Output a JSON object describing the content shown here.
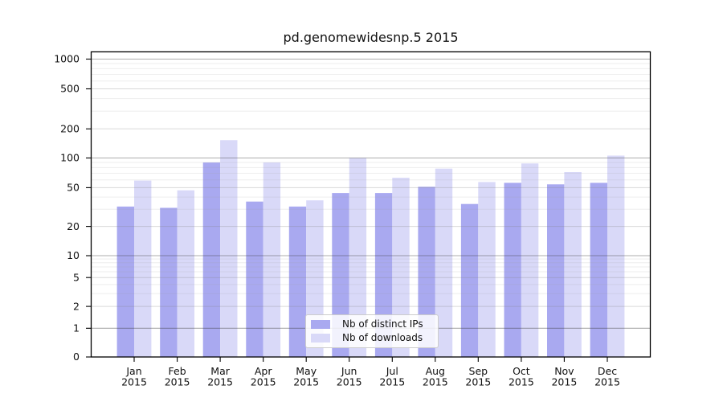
{
  "title": "pd.genomewidesnp.5 2015",
  "legend": {
    "items": [
      {
        "label": "Nb of distinct IPs",
        "color": "#a9a9f0"
      },
      {
        "label": "Nb of downloads",
        "color": "#d9d9f8"
      }
    ]
  },
  "chart_data": {
    "type": "bar",
    "title": "pd.genomewidesnp.5 2015",
    "x_tick_labels": [
      [
        "Jan",
        "2015"
      ],
      [
        "Feb",
        "2015"
      ],
      [
        "Mar",
        "2015"
      ],
      [
        "Apr",
        "2015"
      ],
      [
        "May",
        "2015"
      ],
      [
        "Jun",
        "2015"
      ],
      [
        "Jul",
        "2015"
      ],
      [
        "Aug",
        "2015"
      ],
      [
        "Sep",
        "2015"
      ],
      [
        "Oct",
        "2015"
      ],
      [
        "Nov",
        "2015"
      ],
      [
        "Dec",
        "2015"
      ]
    ],
    "y_tick_labels": [
      "0",
      "1",
      "2",
      "5",
      "10",
      "20",
      "50",
      "100",
      "200",
      "500",
      "1000"
    ],
    "y_ticks": [
      0,
      1,
      2,
      5,
      10,
      20,
      50,
      100,
      200,
      500,
      1000
    ],
    "yscale": "symlog",
    "ylim": [
      0,
      1180
    ],
    "grid": true,
    "legend_position": "lower center",
    "series": [
      {
        "name": "Nb of distinct IPs",
        "color": "#a9a9f0",
        "values": [
          32,
          31,
          90,
          36,
          32,
          44,
          44,
          51,
          34,
          56,
          54,
          56
        ]
      },
      {
        "name": "Nb of downloads",
        "color": "#d9d9f8",
        "values": [
          59,
          47,
          153,
          90,
          37,
          100,
          63,
          78,
          57,
          88,
          72,
          106
        ]
      }
    ]
  }
}
